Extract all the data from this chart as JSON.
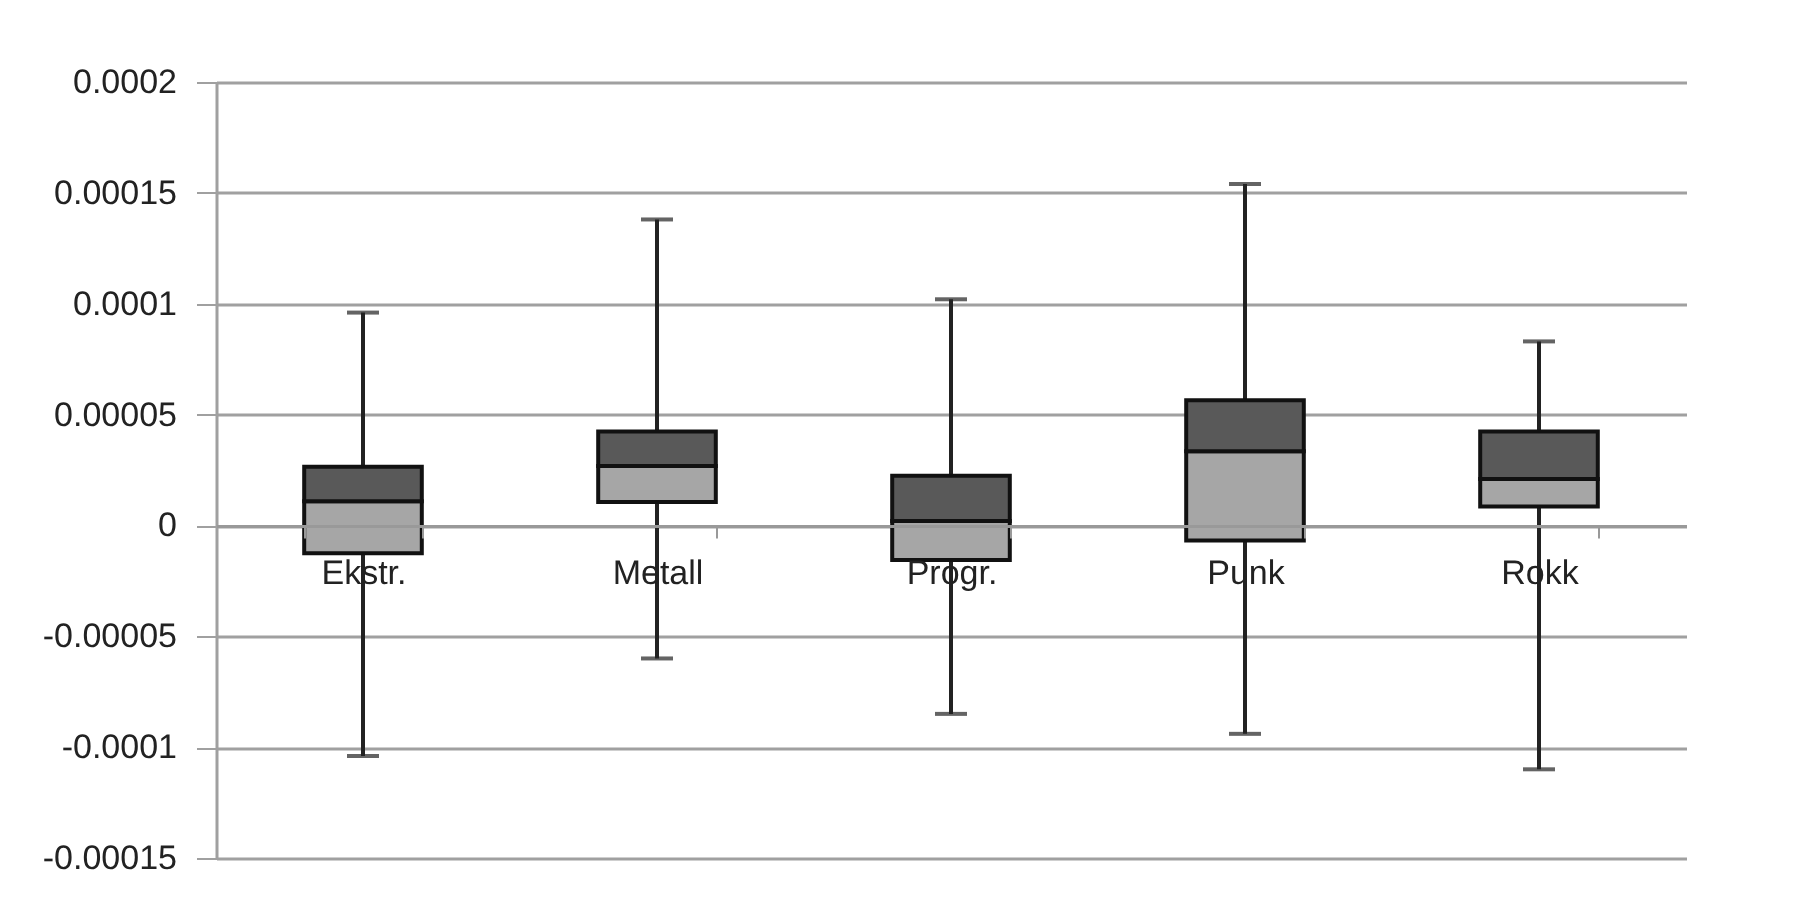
{
  "chart_data": {
    "type": "box",
    "categories": [
      "Ekstr.",
      "Metall",
      "Progr.",
      "Punk",
      "Rokk"
    ],
    "series": [
      {
        "color": "#a6a6a6",
        "boxes": [
          {
            "low": -0.000104,
            "q1": -1.26e-05,
            "median": 1.09e-05,
            "q3": 2.65e-05,
            "high": 9.6e-05
          },
          {
            "low": -6e-05,
            "q1": 1.06e-05,
            "median": 2.68e-05,
            "q3": 4.24e-05,
            "high": 0.000138
          },
          {
            "low": -8.5e-05,
            "q1": -1.56e-05,
            "median": 2e-06,
            "q3": 2.24e-05,
            "high": 0.000102
          },
          {
            "low": -9.4e-05,
            "q1": -6.8e-06,
            "median": 3.35e-05,
            "q3": 5.65e-05,
            "high": 0.000154
          },
          {
            "low": -0.00011,
            "q1": 8.5e-06,
            "median": 2.09e-05,
            "q3": 4.24e-05,
            "high": 8.3e-05
          }
        ]
      }
    ],
    "ylim": [
      -0.00015,
      0.0002
    ],
    "yticks": [
      {
        "value": -0.00015,
        "label": "-0.00015"
      },
      -0.0001,
      {
        "value": -5e-05,
        "label": "-0.00005"
      },
      0,
      {
        "value": 5e-05,
        "label": "0.00005"
      },
      0.0001,
      0.00015,
      0.0002
    ],
    "grid": "y"
  }
}
